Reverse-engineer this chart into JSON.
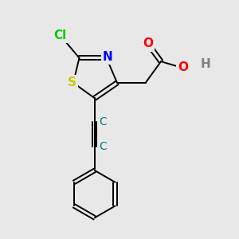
{
  "bg_color": "#e8e8e8",
  "bond_color": "#000000",
  "line_width": 1.4,
  "atom_colors": {
    "Cl": "#00cc00",
    "N": "#0000ff",
    "S": "#cccc00",
    "O": "#ff0000",
    "C_teal": "#008080",
    "H": "#808080"
  },
  "font_size": 10,
  "font_size_small": 9,
  "xlim": [
    0,
    10
  ],
  "ylim": [
    0,
    10
  ]
}
